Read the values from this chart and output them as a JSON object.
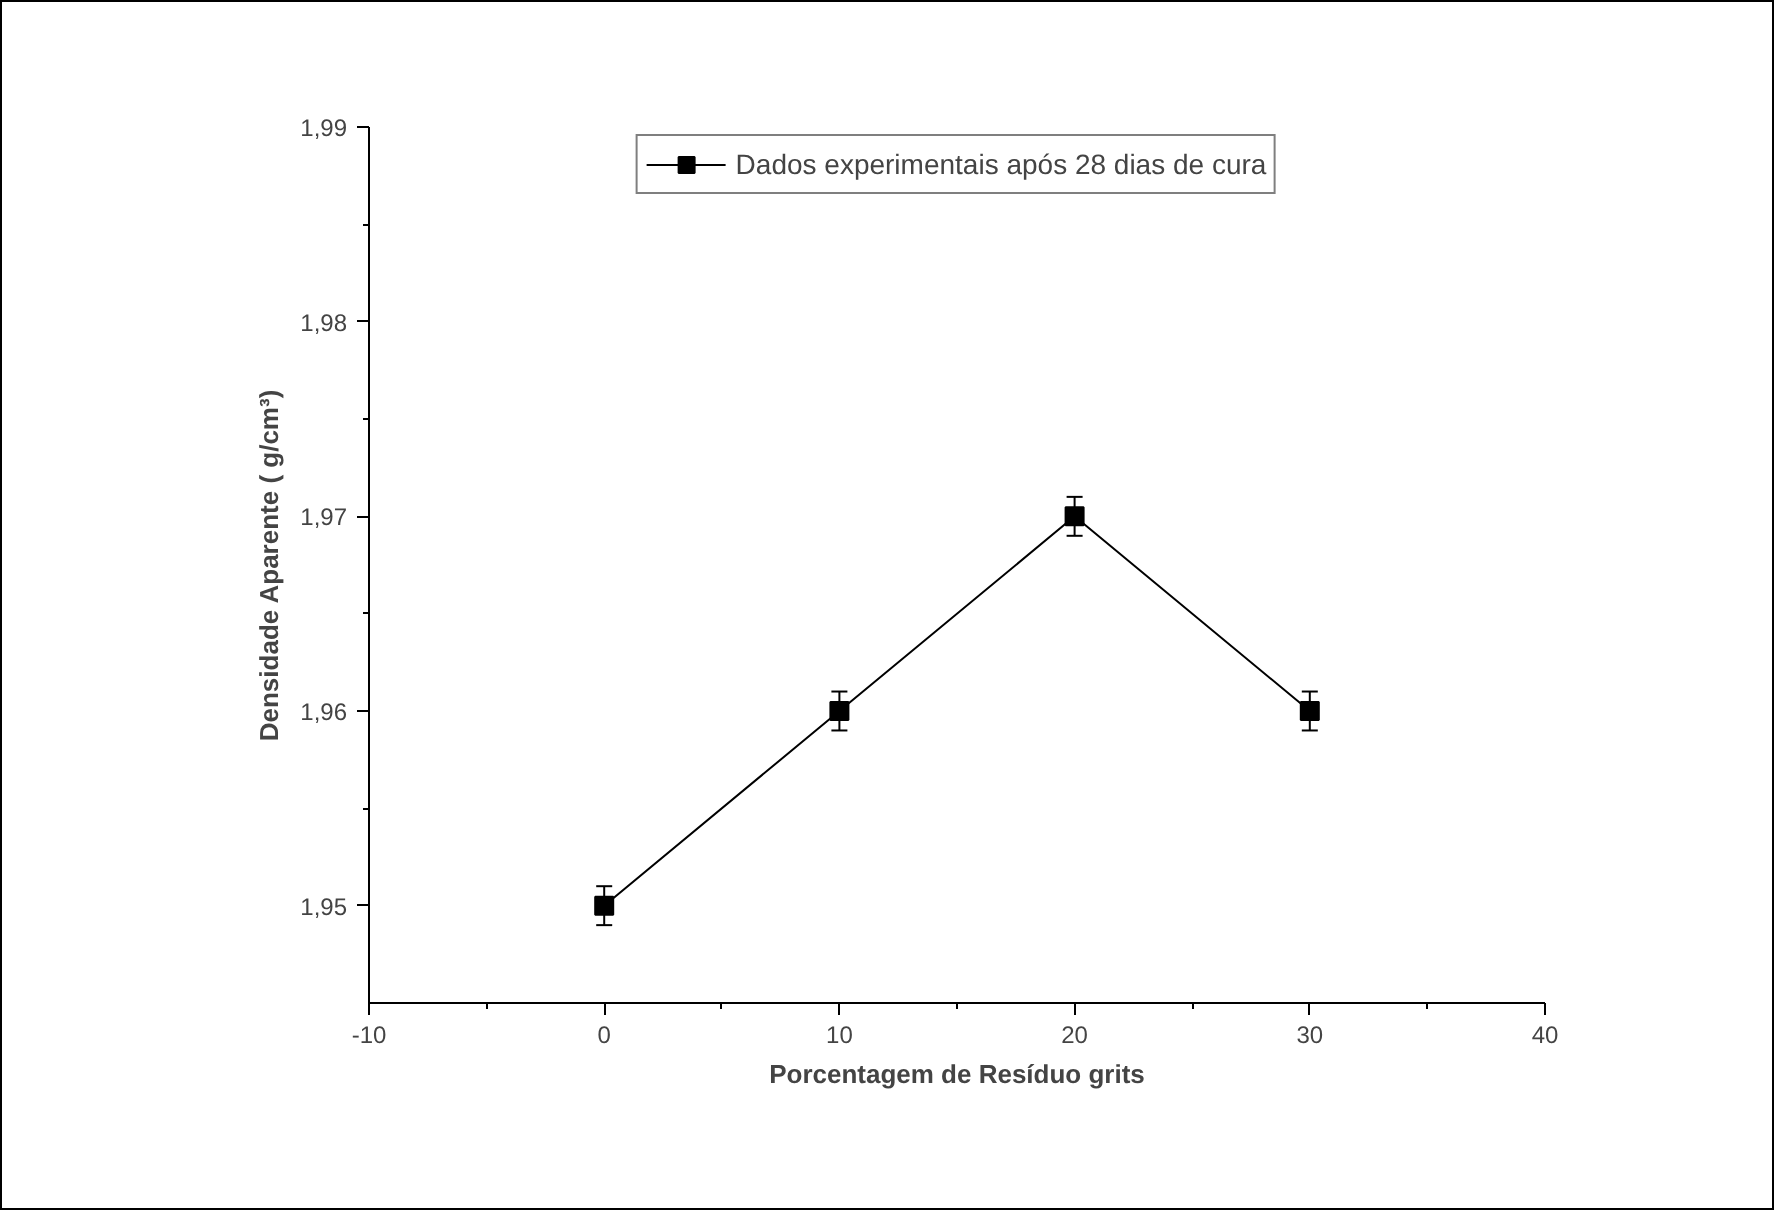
{
  "chart_data": {
    "type": "line",
    "xlabel": "Porcentagem de Resíduo grits",
    "ylabel": "Densidade Aparente ( g/cm³)",
    "x": [
      0,
      10,
      20,
      30
    ],
    "series": [
      {
        "name": "Dados experimentais após 28 dias de cura",
        "color": "#000000",
        "values": [
          1.95,
          1.96,
          1.97,
          1.96
        ],
        "errors": [
          0.001,
          0.001,
          0.001,
          0.001
        ]
      }
    ],
    "xlim": [
      -10,
      40
    ],
    "xticks": [
      -10,
      0,
      10,
      20,
      30,
      40
    ],
    "ylim": [
      1.945,
      1.99
    ],
    "yticks": [
      {
        "value": 1.95,
        "label": "1,95"
      },
      {
        "value": 1.96,
        "label": "1,96"
      },
      {
        "value": 1.97,
        "label": "1,97"
      },
      {
        "value": 1.98,
        "label": "1,98"
      },
      {
        "value": 1.99,
        "label": "1,99"
      }
    ],
    "marker": "square",
    "line_style": "solid",
    "legend": "top",
    "grid": false
  }
}
